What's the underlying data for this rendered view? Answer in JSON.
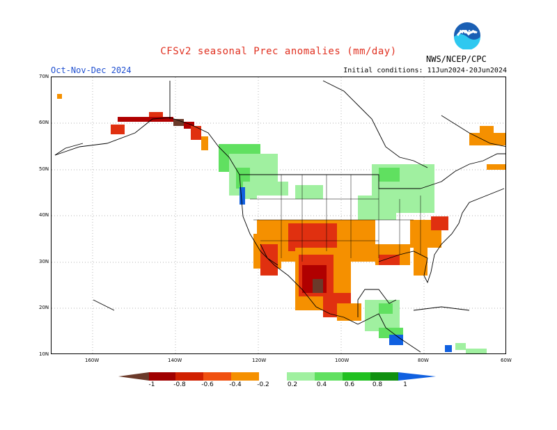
{
  "header": {
    "title": "CFSv2 seasonal Prec anomalies (mm/day)",
    "period": "Oct-Nov-Dec 2024",
    "initial_conditions": "Initial conditions: 11Jun2024-20Jun2024",
    "agency": "NWS/NCEP/CPC",
    "logo_text": "NOAA"
  },
  "axes": {
    "lat_labels": [
      "70N",
      "60N",
      "50N",
      "40N",
      "30N",
      "20N",
      "10N"
    ],
    "lon_labels": [
      "160W",
      "140W",
      "120W",
      "100W",
      "80W",
      "60W"
    ]
  },
  "colorbar": {
    "labels": [
      "-1",
      "-0.8",
      "-0.6",
      "-0.4",
      "-0.2",
      "0.2",
      "0.4",
      "0.6",
      "0.8",
      "1"
    ],
    "colors": [
      "#6b3a2a",
      "#a00000",
      "#d02000",
      "#f05010",
      "#f59000",
      "#ffffff",
      "#a0f0a0",
      "#60e060",
      "#20c020",
      "#109010",
      "#1060e0"
    ]
  },
  "map": {
    "legend_colors": {
      "dry_extreme": "#6b3a2a",
      "dry_strong": "#b00000",
      "dry_mid": "#e03010",
      "dry_light": "#f59000",
      "wet_light": "#a0f0a0",
      "wet_mid": "#60e060",
      "wet_strong": "#20b020",
      "wet_extreme": "#1060e0"
    }
  }
}
